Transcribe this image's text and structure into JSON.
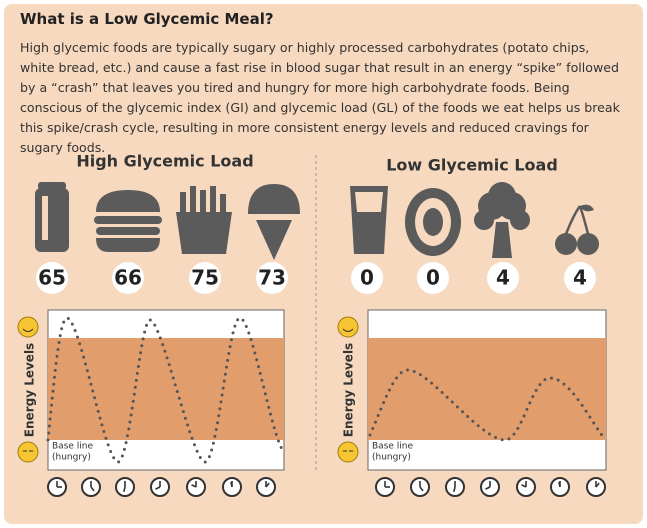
{
  "header": {
    "title": "What is a Low Glycemic Meal?"
  },
  "intro": "High glycemic foods are typically sugary or highly processed carbohydrates (potato chips, white bread, etc.) and cause a fast rise in blood sugar that result in an energy “spike” followed by a “crash” that leaves you tired and hungry for more high carbohydrate foods. Being conscious of the glycemic index (GI) and glycemic load (GL) of the foods we eat helps us break this spike/crash cycle, resulting in more consistent energy levels and reduced cravings for sugary foods.",
  "panels": [
    {
      "title": "High Glycemic Load",
      "loads": [
        65,
        66,
        75,
        73
      ],
      "y_axis_label": "Energy Levels",
      "baseline_label": "Base line",
      "baseline_note": "(hungry)"
    },
    {
      "title": "Low Glycemic Load",
      "loads": [
        0,
        0,
        4,
        4
      ],
      "y_axis_label": "Energy Levels",
      "baseline_label": "Base line",
      "baseline_note": "(hungry)"
    }
  ]
}
